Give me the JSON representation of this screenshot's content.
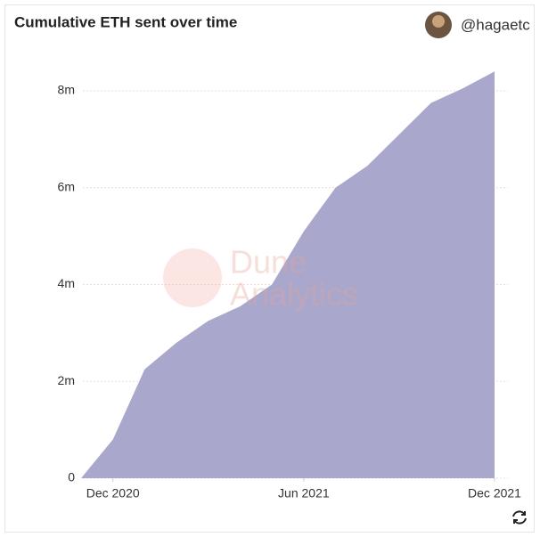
{
  "chart_data": {
    "type": "area",
    "title": "Cumulative ETH sent over time",
    "author": "@hagaetc",
    "watermark": [
      "Dune",
      "Analytics"
    ],
    "x": [
      "2020-11",
      "2020-12",
      "2021-01",
      "2021-02",
      "2021-03",
      "2021-04",
      "2021-05",
      "2021-06",
      "2021-07",
      "2021-08",
      "2021-09",
      "2021-10",
      "2021-11",
      "2021-12"
    ],
    "values": [
      0,
      800000,
      2250000,
      2800000,
      3250000,
      3550000,
      4000000,
      5100000,
      6000000,
      6450000,
      7100000,
      7750000,
      8050000,
      8400000
    ],
    "color": "#a9a8cc",
    "xlim": [
      "2020-11",
      "2021-12"
    ],
    "xticks": [
      {
        "value": "2020-12",
        "label": "Dec 2020"
      },
      {
        "value": "2021-06",
        "label": "Jun 2021"
      },
      {
        "value": "2021-12",
        "label": "Dec 2021"
      }
    ],
    "ylim": [
      0,
      8600000
    ],
    "yticks": [
      0,
      {
        "value": 2000000,
        "label": "2m"
      },
      {
        "value": 4000000,
        "label": "4m"
      },
      {
        "value": 6000000,
        "label": "6m"
      },
      {
        "value": 8000000,
        "label": "8m"
      }
    ],
    "grid": true
  }
}
